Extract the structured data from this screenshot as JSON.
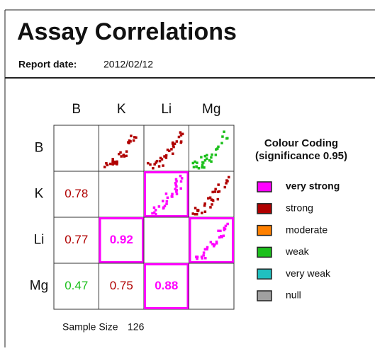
{
  "header": {
    "title": "Assay Correlations",
    "report_date_label": "Report date:",
    "report_date": "2012/02/12"
  },
  "matrix": {
    "variables": [
      "B",
      "K",
      "Li",
      "Mg"
    ],
    "rows": [
      [
        null,
        {
          "strength": "strong"
        },
        {
          "strength": "strong"
        },
        {
          "strength": "weak"
        }
      ],
      [
        {
          "value": 0.78,
          "strength": "strong"
        },
        null,
        {
          "strength": "very strong"
        },
        {
          "strength": "strong"
        }
      ],
      [
        {
          "value": 0.77,
          "strength": "strong"
        },
        {
          "value": 0.92,
          "strength": "very strong"
        },
        null,
        {
          "strength": "very strong"
        }
      ],
      [
        {
          "value": 0.47,
          "strength": "weak"
        },
        {
          "value": 0.75,
          "strength": "strong"
        },
        {
          "value": 0.88,
          "strength": "very strong"
        },
        null
      ]
    ]
  },
  "legend": {
    "title": "Colour Coding",
    "subtitle": "(significance 0.95)",
    "items": [
      {
        "label": "very strong",
        "color": "#ff00ff"
      },
      {
        "label": "strong",
        "color": "#b00000"
      },
      {
        "label": "moderate",
        "color": "#ff8000"
      },
      {
        "label": "weak",
        "color": "#1cc01c"
      },
      {
        "label": "very weak",
        "color": "#20c0c0"
      },
      {
        "label": "null",
        "color": "#a0a0a0"
      }
    ]
  },
  "footer": {
    "sample_size_label": "Sample Size",
    "sample_size": "126"
  }
}
